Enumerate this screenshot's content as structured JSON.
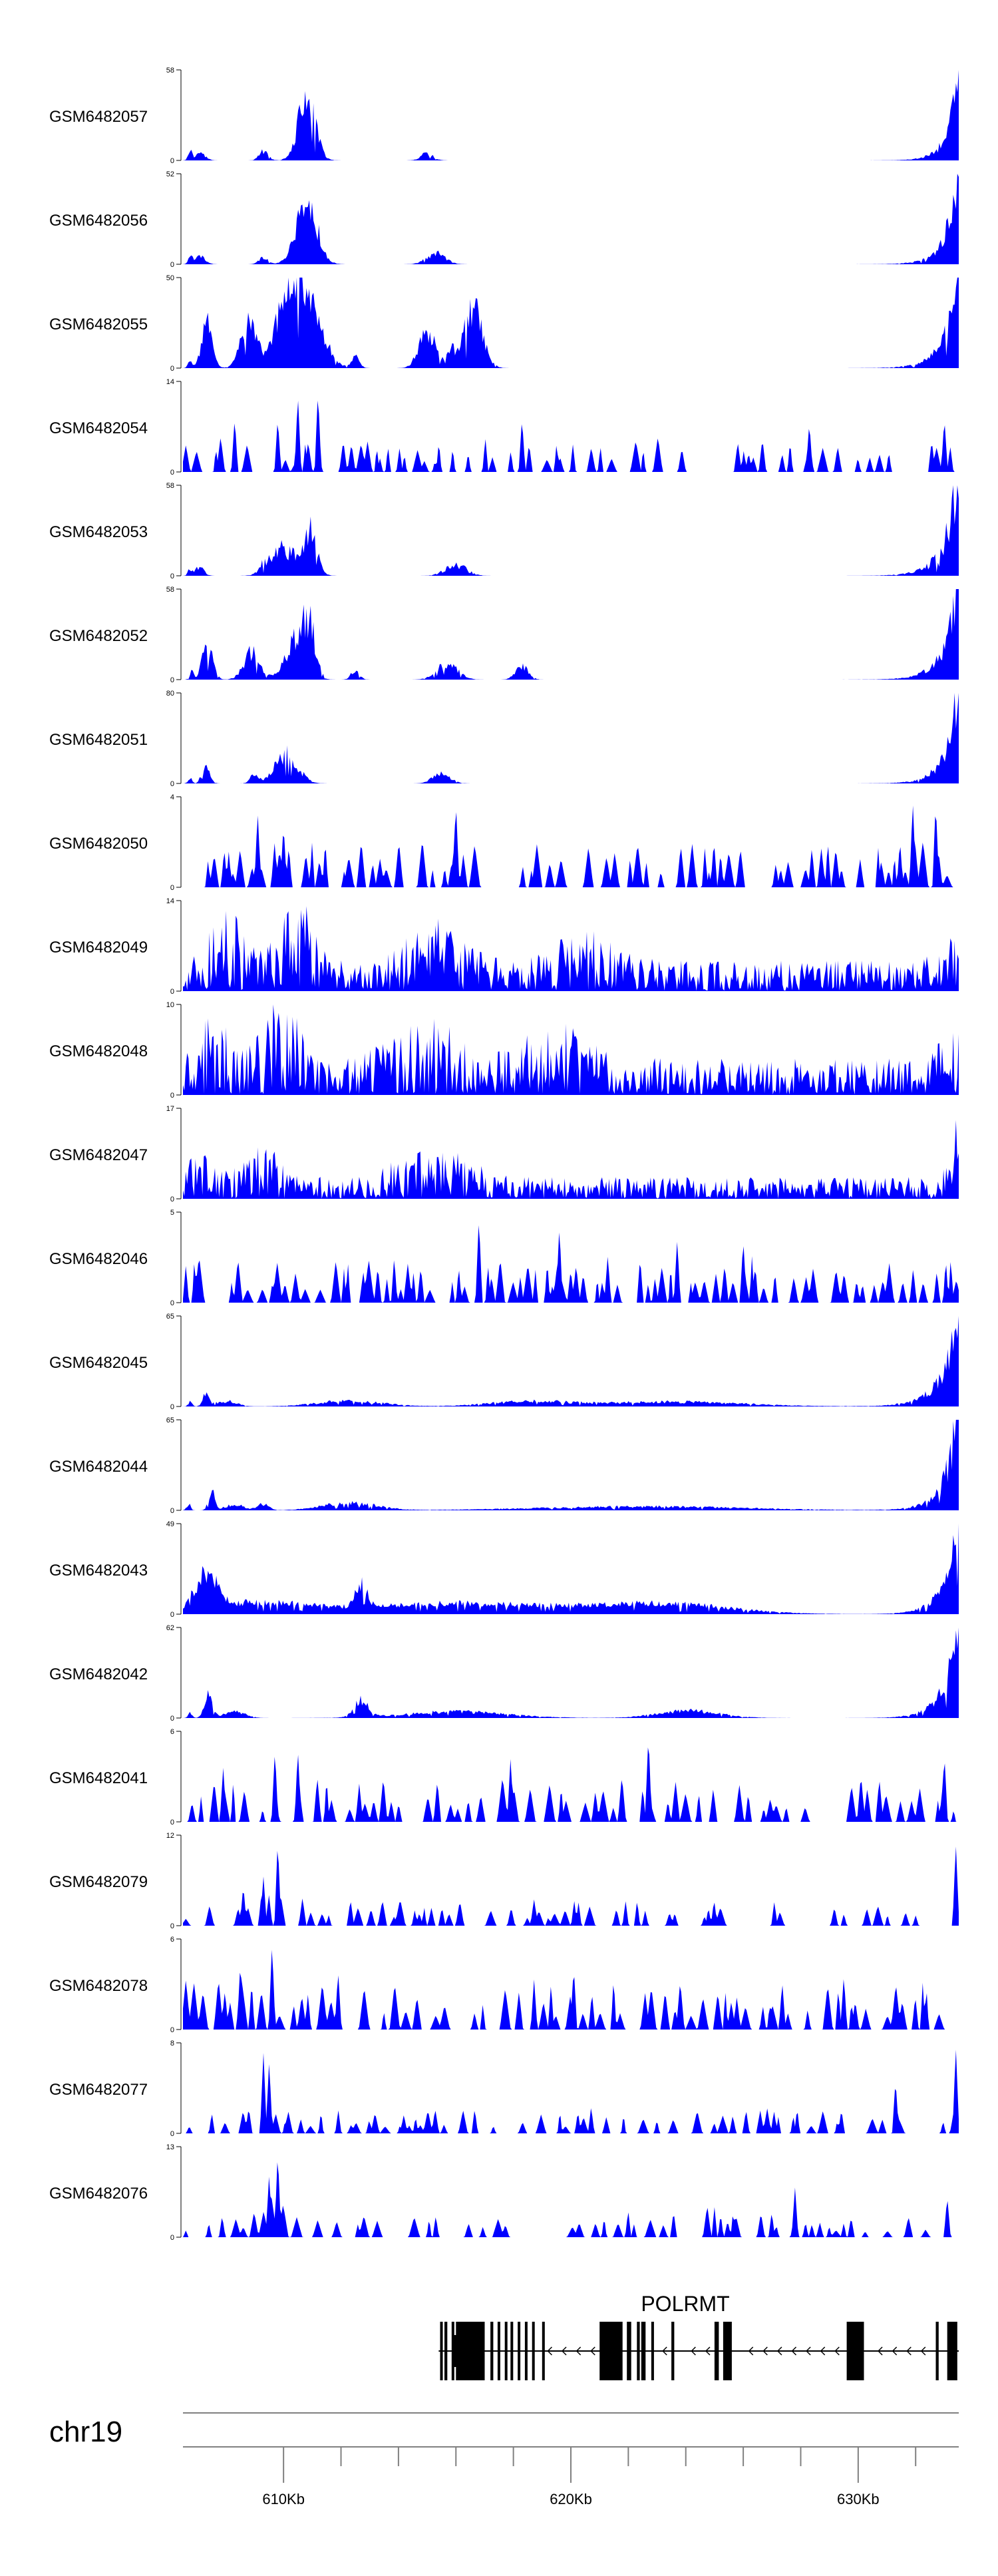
{
  "chart_data": {
    "type": "area",
    "title": "",
    "xlabel": "",
    "ylabel": "",
    "chromosome": "chr19",
    "xlim_kb": [
      606.5,
      633.5
    ],
    "x_ticks": [
      {
        "kb": 610,
        "label": "610Kb"
      },
      {
        "kb": 620,
        "label": "620Kb"
      },
      {
        "kb": 630,
        "label": "630Kb"
      }
    ],
    "minor_ticks_kb": [
      612,
      614,
      616,
      618,
      622,
      624,
      626,
      628,
      632
    ],
    "gene": {
      "name": "POLRMT",
      "strand": "-",
      "start_kb": 615.4,
      "end_kb": 633.5,
      "exons_kb": [
        [
          615.45,
          615.5
        ],
        [
          615.6,
          615.7
        ],
        [
          615.85,
          615.9
        ],
        [
          616.0,
          617.0
        ],
        [
          617.2,
          617.3
        ],
        [
          617.45,
          617.5
        ],
        [
          617.7,
          617.75
        ],
        [
          617.9,
          617.95
        ],
        [
          618.15,
          618.2
        ],
        [
          618.4,
          618.45
        ],
        [
          618.65,
          618.7
        ],
        [
          619.0,
          619.05
        ],
        [
          621.0,
          621.8
        ],
        [
          621.95,
          622.1
        ],
        [
          622.3,
          622.4
        ],
        [
          622.45,
          622.6
        ],
        [
          622.8,
          622.85
        ],
        [
          623.5,
          623.6
        ],
        [
          625.0,
          625.15
        ],
        [
          625.3,
          625.6
        ],
        [
          629.6,
          630.2
        ],
        [
          632.7,
          632.8
        ],
        [
          633.1,
          633.45
        ]
      ]
    },
    "series": [
      {
        "name": "GSM6482057",
        "ymax": 58,
        "shape": [
          [
            "b",
            0.6,
            0.25,
            0.07
          ],
          [
            "b",
            4.3,
            0.42,
            0.7
          ],
          [
            "b",
            2.8,
            0.22,
            0.1
          ],
          [
            "b",
            8.5,
            0.3,
            0.08
          ],
          [
            "r",
            0.02,
            0.3
          ],
          [
            "r",
            0.04,
            0.75
          ],
          [
            "b",
            0.25,
            0.1,
            0.09
          ]
        ],
        "noise": 0.35,
        "seed": 1
      },
      {
        "name": "GSM6482056",
        "ymax": 52,
        "shape": [
          [
            "b",
            0.6,
            0.25,
            0.08
          ],
          [
            "b",
            4.3,
            0.5,
            0.72
          ],
          [
            "b",
            2.8,
            0.22,
            0.08
          ],
          [
            "b",
            8.8,
            0.45,
            0.12
          ],
          [
            "r",
            0.02,
            0.35
          ],
          [
            "r",
            0.045,
            0.85
          ],
          [
            "b",
            0.25,
            0.1,
            0.08
          ]
        ],
        "noise": 0.35,
        "seed": 2
      },
      {
        "name": "GSM6482055",
        "ymax": 50,
        "shape": [
          [
            "b",
            0.85,
            0.25,
            0.55
          ],
          [
            "b",
            2.3,
            0.4,
            0.48
          ],
          [
            "b",
            3.6,
            0.55,
            0.63
          ],
          [
            "b",
            4.3,
            0.7,
            0.8
          ],
          [
            "b",
            6.0,
            0.2,
            0.12
          ],
          [
            "b",
            9.3,
            0.2,
            0.2
          ],
          [
            "b",
            10.1,
            0.45,
            0.65
          ],
          [
            "b",
            8.5,
            0.4,
            0.4
          ],
          [
            "r",
            0.02,
            0.3
          ],
          [
            "r",
            0.05,
            0.9
          ],
          [
            "b",
            0.25,
            0.1,
            0.08
          ]
        ],
        "noise": 0.3,
        "seed": 3
      },
      {
        "name": "GSM6482054",
        "ymax": 14,
        "spiky": true,
        "density": 0.55,
        "base": 0.35,
        "peaks": [
          [
            4.0,
            0.85
          ],
          [
            4.7,
            0.9
          ],
          [
            3.3,
            0.6
          ],
          [
            1.8,
            0.6
          ],
          [
            11.8,
            0.6
          ],
          [
            21.8,
            0.55
          ],
          [
            26.5,
            0.6
          ]
        ],
        "seed": 4
      },
      {
        "name": "GSM6482053",
        "ymax": 58,
        "shape": [
          [
            "b",
            0.6,
            0.2,
            0.1
          ],
          [
            "b",
            3.5,
            0.6,
            0.3
          ],
          [
            "b",
            4.4,
            0.35,
            0.45
          ],
          [
            "b",
            2.8,
            0.22,
            0.08
          ],
          [
            "b",
            9.5,
            0.5,
            0.12
          ],
          [
            "r",
            0.02,
            0.25
          ],
          [
            "r",
            0.05,
            0.95
          ],
          [
            "b",
            0.25,
            0.1,
            0.07
          ]
        ],
        "noise": 0.4,
        "seed": 5
      },
      {
        "name": "GSM6482052",
        "ymax": 58,
        "shape": [
          [
            "b",
            0.85,
            0.25,
            0.4
          ],
          [
            "b",
            2.4,
            0.4,
            0.3
          ],
          [
            "b",
            3.9,
            0.5,
            0.42
          ],
          [
            "b",
            4.4,
            0.3,
            0.5
          ],
          [
            "b",
            6.0,
            0.2,
            0.1
          ],
          [
            "b",
            9.2,
            0.5,
            0.17
          ],
          [
            "b",
            11.8,
            0.3,
            0.15
          ],
          [
            "r",
            0.02,
            0.35
          ],
          [
            "r",
            0.05,
            0.95
          ],
          [
            "b",
            0.3,
            0.1,
            0.08
          ]
        ],
        "noise": 0.35,
        "seed": 6
      },
      {
        "name": "GSM6482051",
        "ymax": 80,
        "shape": [
          [
            "b",
            0.8,
            0.2,
            0.18
          ],
          [
            "b",
            3.6,
            0.55,
            0.32
          ],
          [
            "b",
            2.5,
            0.2,
            0.1
          ],
          [
            "b",
            9.0,
            0.4,
            0.12
          ],
          [
            "r",
            0.02,
            0.25
          ],
          [
            "r",
            0.045,
            0.95
          ],
          [
            "b",
            0.25,
            0.1,
            0.06
          ]
        ],
        "noise": 0.35,
        "seed": 7
      },
      {
        "name": "GSM6482050",
        "ymax": 4,
        "spiky": true,
        "density": 0.75,
        "base": 0.45,
        "peaks": [
          [
            2.6,
            0.85
          ],
          [
            3.5,
            0.7
          ],
          [
            9.5,
            0.95
          ],
          [
            25.4,
            0.95
          ],
          [
            26.2,
            0.95
          ]
        ],
        "seed": 8
      },
      {
        "name": "GSM6482049",
        "ymax": 14,
        "dense": true,
        "base": 0.25,
        "shape": [
          [
            "b",
            1.5,
            0.8,
            0.45
          ],
          [
            "b",
            3.9,
            0.75,
            0.55
          ],
          [
            "b",
            8.8,
            1.3,
            0.35
          ],
          [
            "b",
            14,
            1.5,
            0.25
          ],
          [
            "r",
            0.05,
            0.35
          ]
        ],
        "peaks": [
          [
            4.3,
            0.95
          ],
          [
            8.8,
            0.8
          ]
        ],
        "seed": 9
      },
      {
        "name": "GSM6482048",
        "ymax": 10,
        "dense": true,
        "base": 0.3,
        "shape": [
          [
            "b",
            1.0,
            0.8,
            0.4
          ],
          [
            "b",
            3.4,
            0.8,
            0.55
          ],
          [
            "b",
            8.5,
            1.6,
            0.35
          ],
          [
            "b",
            13,
            1.5,
            0.3
          ],
          [
            "r",
            0.05,
            0.4
          ]
        ],
        "peaks": [
          [
            3.3,
            0.8
          ],
          [
            26.3,
            0.75
          ]
        ],
        "seed": 10
      },
      {
        "name": "GSM6482047",
        "ymax": 17,
        "dense": true,
        "base": 0.18,
        "shape": [
          [
            "b",
            0.6,
            0.6,
            0.2
          ],
          [
            "b",
            2.7,
            0.8,
            0.3
          ],
          [
            "b",
            8.7,
            1.6,
            0.28
          ],
          [
            "r",
            0.05,
            0.2
          ]
        ],
        "peaks": [
          [
            2.5,
            0.5
          ],
          [
            8.9,
            0.5
          ],
          [
            26.9,
            0.9
          ]
        ],
        "seed": 11
      },
      {
        "name": "GSM6482046",
        "ymax": 5,
        "spiky": true,
        "density": 0.85,
        "base": 0.45,
        "peaks": [
          [
            10.3,
            0.95
          ],
          [
            13.1,
            0.85
          ],
          [
            17.2,
            0.7
          ],
          [
            19.5,
            0.7
          ]
        ],
        "seed": 12
      },
      {
        "name": "GSM6482045",
        "ymax": 65,
        "shape": [
          [
            "b",
            0.8,
            0.15,
            0.15
          ],
          [
            "b",
            1.5,
            0.5,
            0.06
          ],
          [
            "b",
            5.8,
            1.6,
            0.06
          ],
          [
            "b",
            12,
            2.0,
            0.05
          ],
          [
            "b",
            17,
            3.5,
            0.05
          ],
          [
            "r",
            0.02,
            0.3
          ],
          [
            "r",
            0.06,
            0.9
          ],
          [
            "b",
            0.25,
            0.1,
            0.05
          ]
        ],
        "noise": 0.35,
        "seed": 13
      },
      {
        "name": "GSM6482044",
        "ymax": 65,
        "shape": [
          [
            "b",
            1.0,
            0.15,
            0.22
          ],
          [
            "b",
            1.8,
            0.5,
            0.06
          ],
          [
            "b",
            2.8,
            0.25,
            0.07
          ],
          [
            "b",
            5.8,
            1.3,
            0.08
          ],
          [
            "b",
            16,
            5,
            0.04
          ],
          [
            "r",
            0.02,
            0.25
          ],
          [
            "r",
            0.05,
            0.95
          ],
          [
            "b",
            0.2,
            0.1,
            0.07
          ]
        ],
        "noise": 0.35,
        "seed": 14
      },
      {
        "name": "GSM6482043",
        "ymax": 49,
        "shape": [
          [
            "b",
            0.7,
            0.2,
            0.35
          ],
          [
            "b",
            1.1,
            0.35,
            0.25
          ],
          [
            "b",
            0.3,
            0.2,
            0.15
          ],
          [
            "b",
            2.5,
            2.5,
            0.12
          ],
          [
            "b",
            6.2,
            0.3,
            0.25
          ],
          [
            "b",
            10,
            5,
            0.12
          ],
          [
            "b",
            17,
            3,
            0.1
          ],
          [
            "r",
            0.02,
            0.3
          ],
          [
            "r",
            0.05,
            0.95
          ],
          [
            "b",
            0.3,
            0.1,
            0.1
          ]
        ],
        "noise": 0.3,
        "seed": 15
      },
      {
        "name": "GSM6482042",
        "ymax": 62,
        "shape": [
          [
            "b",
            0.9,
            0.2,
            0.25
          ],
          [
            "b",
            1.8,
            0.5,
            0.07
          ],
          [
            "b",
            6.2,
            0.35,
            0.18
          ],
          [
            "b",
            9.5,
            2.5,
            0.07
          ],
          [
            "b",
            17.6,
            1.5,
            0.08
          ],
          [
            "r",
            0.02,
            0.25
          ],
          [
            "r",
            0.05,
            0.95
          ],
          [
            "b",
            0.25,
            0.1,
            0.06
          ]
        ],
        "noise": 0.3,
        "seed": 16
      },
      {
        "name": "GSM6482041",
        "ymax": 6,
        "spiky": true,
        "density": 0.6,
        "base": 0.45,
        "peaks": [
          [
            16.2,
            0.98
          ],
          [
            3.2,
            0.8
          ],
          [
            4.0,
            0.8
          ],
          [
            1.4,
            0.6
          ],
          [
            11.4,
            0.7
          ],
          [
            26.5,
            0.75
          ]
        ],
        "seed": 17
      },
      {
        "name": "GSM6482079",
        "ymax": 12,
        "spiky": true,
        "density": 0.55,
        "base": 0.25,
        "shape": [
          [
            "b",
            3.2,
            1.0,
            0.3
          ]
        ],
        "peaks": [
          [
            3.3,
            0.95
          ],
          [
            2.8,
            0.55
          ],
          [
            2.1,
            0.45
          ],
          [
            26.9,
            0.9
          ]
        ],
        "seed": 18
      },
      {
        "name": "GSM6482078",
        "ymax": 6,
        "spiky": true,
        "density": 0.7,
        "base": 0.5,
        "peaks": [
          [
            3.1,
            0.95
          ],
          [
            2.0,
            0.75
          ],
          [
            5.4,
            0.65
          ],
          [
            13.6,
            0.7
          ],
          [
            23,
            0.6
          ]
        ],
        "seed": 19
      },
      {
        "name": "GSM6482077",
        "ymax": 8,
        "spiky": true,
        "density": 0.6,
        "base": 0.25,
        "shape": [
          [
            "b",
            2.7,
            0.8,
            0.3
          ]
        ],
        "peaks": [
          [
            2.8,
            0.9
          ],
          [
            3.0,
            0.8
          ],
          [
            24.8,
            0.6
          ],
          [
            26.9,
            0.95
          ]
        ],
        "seed": 20
      },
      {
        "name": "GSM6482076",
        "ymax": 13,
        "spiky": true,
        "density": 0.55,
        "base": 0.22,
        "shape": [
          [
            "b",
            3.2,
            0.6,
            0.35
          ],
          [
            "b",
            18,
            2.5,
            0.12
          ]
        ],
        "peaks": [
          [
            3.3,
            0.95
          ],
          [
            3.0,
            0.7
          ],
          [
            21.3,
            0.55
          ],
          [
            26.6,
            0.45
          ]
        ],
        "seed": 21
      }
    ]
  }
}
